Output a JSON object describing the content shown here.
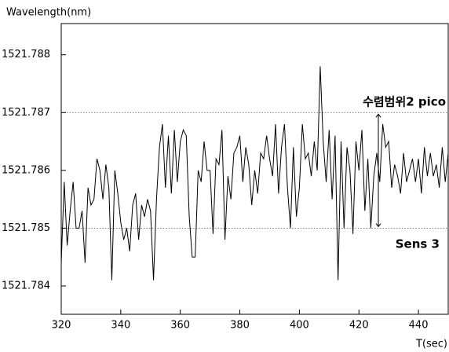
{
  "chart_data": {
    "type": "line",
    "y_label": "Wavelength(nm)",
    "x_label": "T(sec)",
    "annotations": [
      "수렴범위2 pico",
      "Sens 3"
    ],
    "xlim": [
      320,
      450
    ],
    "xticks": [
      320,
      340,
      360,
      380,
      400,
      420,
      440
    ],
    "ylim": [
      1521.78351,
      1521.78854
    ],
    "yticks": [
      1521.788,
      1521.787,
      1521.786,
      1521.785,
      1521.784
    ],
    "hgrid": [
      1521.787,
      1521.785
    ],
    "color": "#000000",
    "x": [
      320,
      321,
      322,
      323,
      324,
      325,
      326,
      327,
      328,
      329,
      330,
      331,
      332,
      333,
      334,
      335,
      336,
      337,
      338,
      339,
      340,
      341,
      342,
      343,
      344,
      345,
      346,
      347,
      348,
      349,
      350,
      351,
      352,
      353,
      354,
      355,
      356,
      357,
      358,
      359,
      360,
      361,
      362,
      363,
      364,
      365,
      366,
      367,
      368,
      369,
      370,
      371,
      372,
      373,
      374,
      375,
      376,
      377,
      378,
      379,
      380,
      381,
      382,
      383,
      384,
      385,
      386,
      387,
      388,
      389,
      390,
      391,
      392,
      393,
      394,
      395,
      396,
      397,
      398,
      399,
      400,
      401,
      402,
      403,
      404,
      405,
      406,
      407,
      408,
      409,
      410,
      411,
      412,
      413,
      414,
      415,
      416,
      417,
      418,
      419,
      420,
      421,
      422,
      423,
      424,
      425,
      426,
      427,
      428,
      429,
      430,
      431,
      432,
      433,
      434,
      435,
      436,
      437,
      438,
      439,
      440,
      441,
      442,
      443,
      444,
      445,
      446,
      447,
      448,
      449,
      450
    ],
    "values": [
      1521.7844,
      1521.7858,
      1521.7847,
      1521.7853,
      1521.7858,
      1521.785,
      1521.785,
      1521.7853,
      1521.7844,
      1521.7857,
      1521.7854,
      1521.7855,
      1521.7862,
      1521.786,
      1521.7855,
      1521.7861,
      1521.7857,
      1521.7841,
      1521.786,
      1521.7856,
      1521.7851,
      1521.7848,
      1521.785,
      1521.7846,
      1521.7854,
      1521.7856,
      1521.7848,
      1521.7854,
      1521.7852,
      1521.7855,
      1521.7853,
      1521.7841,
      1521.7855,
      1521.7864,
      1521.7868,
      1521.7857,
      1521.7866,
      1521.7856,
      1521.7867,
      1521.7858,
      1521.7865,
      1521.7867,
      1521.7866,
      1521.7852,
      1521.7845,
      1521.7845,
      1521.786,
      1521.7858,
      1521.7865,
      1521.786,
      1521.786,
      1521.7849,
      1521.7862,
      1521.7861,
      1521.7867,
      1521.7848,
      1521.7859,
      1521.7855,
      1521.7863,
      1521.7864,
      1521.7866,
      1521.7858,
      1521.7864,
      1521.7861,
      1521.7854,
      1521.786,
      1521.7856,
      1521.7863,
      1521.7862,
      1521.7866,
      1521.7862,
      1521.7859,
      1521.7868,
      1521.7856,
      1521.7864,
      1521.7868,
      1521.7857,
      1521.785,
      1521.7864,
      1521.7852,
      1521.7857,
      1521.7868,
      1521.7862,
      1521.7863,
      1521.7859,
      1521.7865,
      1521.786,
      1521.7878,
      1521.7865,
      1521.7858,
      1521.7867,
      1521.7855,
      1521.7866,
      1521.7841,
      1521.7865,
      1521.785,
      1521.7864,
      1521.786,
      1521.7849,
      1521.7865,
      1521.786,
      1521.7867,
      1521.7853,
      1521.7862,
      1521.785,
      1521.7859,
      1521.7863,
      1521.7858,
      1521.7868,
      1521.7864,
      1521.7865,
      1521.7857,
      1521.7861,
      1521.7859,
      1521.7856,
      1521.7863,
      1521.7858,
      1521.786,
      1521.7862,
      1521.7858,
      1521.7862,
      1521.7856,
      1521.7864,
      1521.7859,
      1521.7863,
      1521.7859,
      1521.7861,
      1521.7857,
      1521.7864,
      1521.7858,
      1521.7863
    ]
  }
}
